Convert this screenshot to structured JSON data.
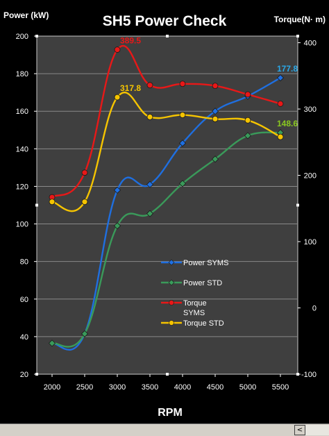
{
  "chart_data": {
    "type": "line",
    "title": "SH5 Power Check",
    "xlabel": "RPM",
    "ylabel_left": "Power (kW)",
    "ylabel_right": "Torque(N· m)",
    "categories": [
      "2000",
      "2500",
      "3000",
      "3500",
      "4000",
      "4500",
      "5000",
      "5500"
    ],
    "ylim_left": [
      20,
      200
    ],
    "yticks_left": [
      20,
      40,
      60,
      80,
      100,
      120,
      140,
      160,
      180,
      200
    ],
    "ylim_right": [
      -100,
      410
    ],
    "yticks_right": [
      -100,
      0,
      100,
      200,
      300,
      400
    ],
    "grid": true,
    "legend_position": "center",
    "series": [
      {
        "name": "Power SYMS",
        "axis": "left",
        "color": "#1f6fe0",
        "values": [
          null,
          null,
          118,
          121,
          143,
          160,
          168,
          177.8
        ]
      },
      {
        "name": "Power STD",
        "axis": "left",
        "color": "#3a9a5a",
        "values": [
          36.5,
          41.5,
          99,
          105.5,
          121.5,
          134.5,
          147,
          148.6
        ]
      },
      {
        "name": "Torque SYMS",
        "axis": "right",
        "color": "#e81818",
        "values": [
          167,
          204,
          389.5,
          336,
          338,
          335,
          322,
          308
        ]
      },
      {
        "name": "Torque STD",
        "axis": "right",
        "color": "#f5c400",
        "values": [
          160,
          160,
          317.8,
          288,
          291,
          285,
          283,
          258
        ]
      }
    ],
    "annotations": [
      {
        "text": "389.5",
        "series": "Torque SYMS",
        "category": "3000",
        "color": "#e81818"
      },
      {
        "text": "317.8",
        "series": "Torque STD",
        "category": "3000",
        "color": "#f5c400"
      },
      {
        "text": "177.8",
        "series": "Power SYMS",
        "category": "5500",
        "color": "#2aa8e8"
      },
      {
        "text": "148.6",
        "series": "Power STD",
        "category": "5500",
        "color": "#8ac820"
      }
    ]
  },
  "scrollbar": {
    "left_arrow": "<"
  }
}
